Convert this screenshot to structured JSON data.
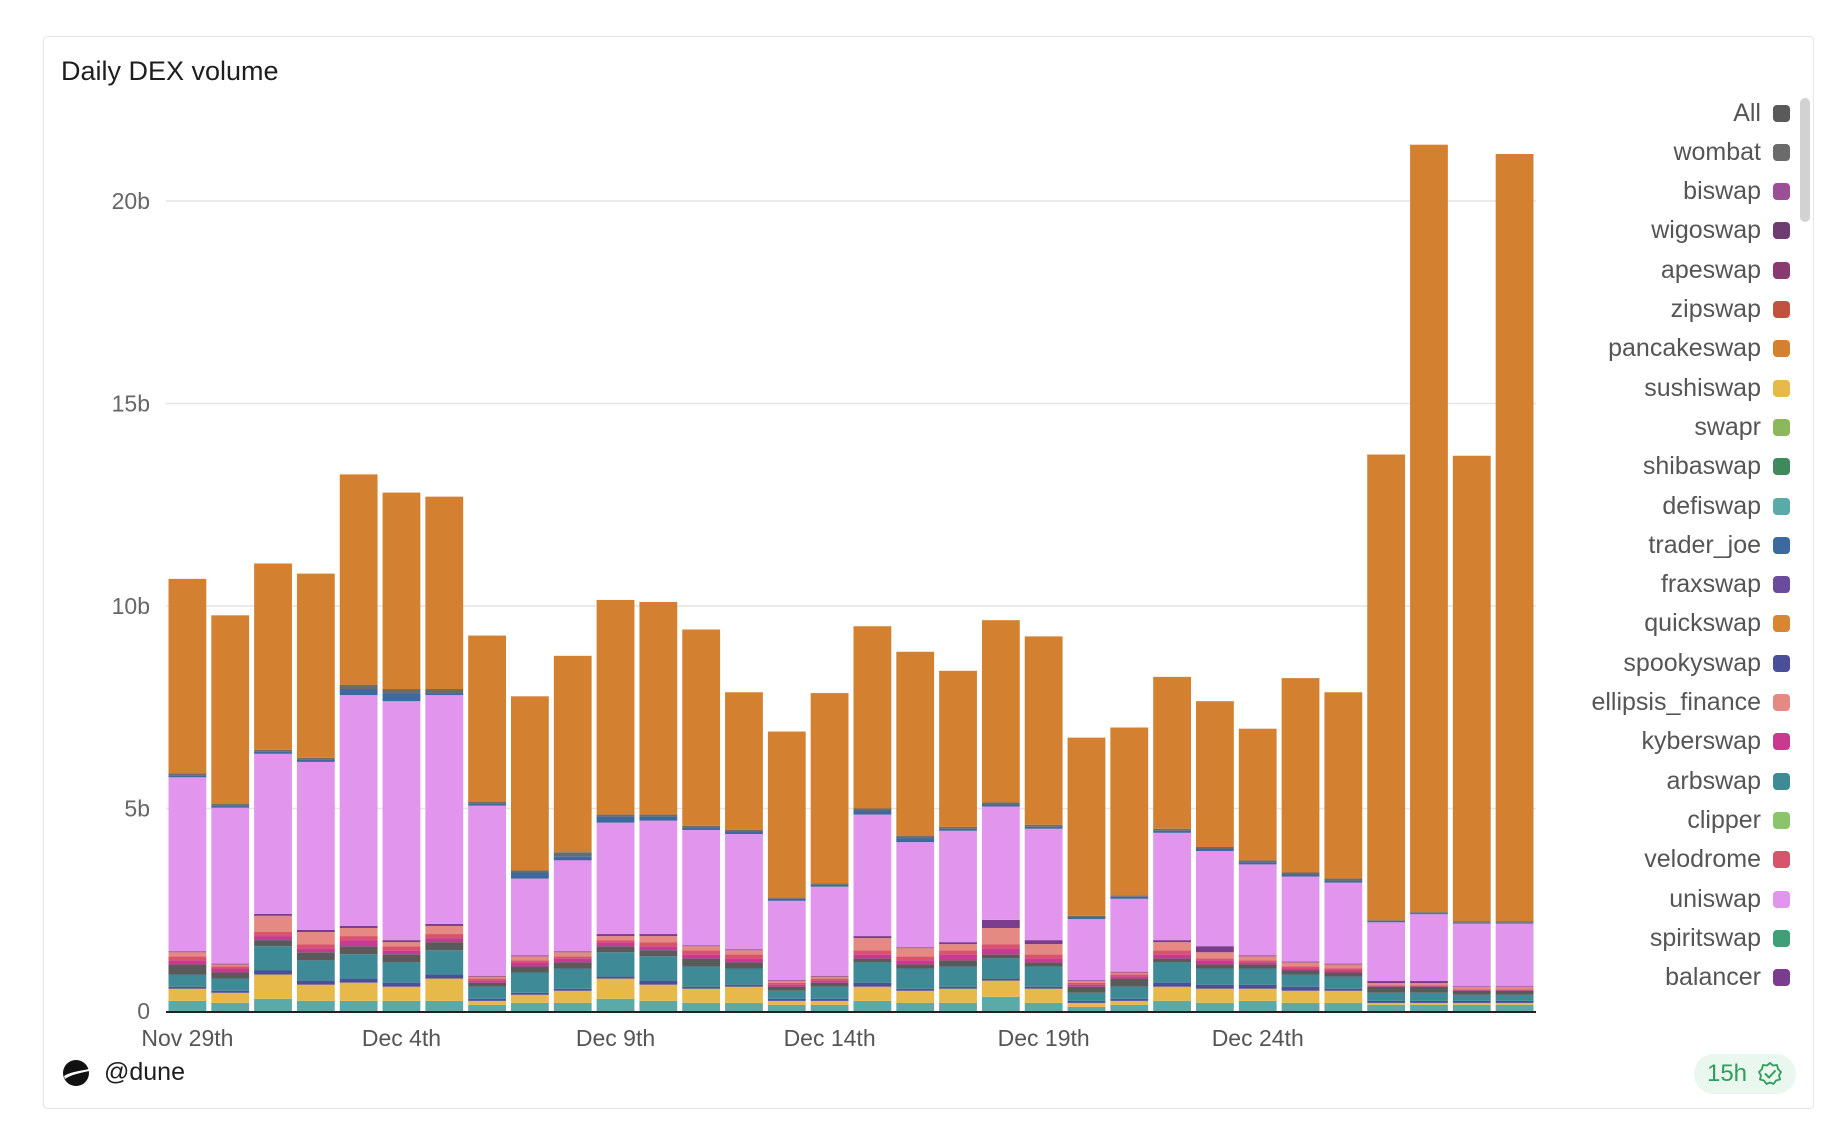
{
  "card": {
    "title": "Daily DEX volume"
  },
  "footer": {
    "user": "@dune",
    "logo_icon": "dune-logo-icon",
    "freshness": "15h",
    "freshness_icon": "verified-check-icon"
  },
  "legend": {
    "items": [
      {
        "label": "All",
        "color": "#5a5a5a"
      },
      {
        "label": "wombat",
        "color": "#6b6b6b"
      },
      {
        "label": "biswap",
        "color": "#9b4f96"
      },
      {
        "label": "wigoswap",
        "color": "#6d3d72"
      },
      {
        "label": "apeswap",
        "color": "#8b3a6f"
      },
      {
        "label": "zipswap",
        "color": "#c0533f"
      },
      {
        "label": "pancakeswap",
        "color": "#d38130"
      },
      {
        "label": "sushiswap",
        "color": "#e7b84a"
      },
      {
        "label": "swapr",
        "color": "#8bb85a"
      },
      {
        "label": "shibaswap",
        "color": "#3f8a5c"
      },
      {
        "label": "defiswap",
        "color": "#5aaaa8"
      },
      {
        "label": "trader_joe",
        "color": "#3d6a9e"
      },
      {
        "label": "fraxswap",
        "color": "#6a4c9c"
      },
      {
        "label": "quickswap",
        "color": "#d8862f"
      },
      {
        "label": "spookyswap",
        "color": "#4a4f9a"
      },
      {
        "label": "ellipsis_finance",
        "color": "#e58a82"
      },
      {
        "label": "kyberswap",
        "color": "#c8398f"
      },
      {
        "label": "arbswap",
        "color": "#3e8a96"
      },
      {
        "label": "clipper",
        "color": "#8cc46a"
      },
      {
        "label": "velodrome",
        "color": "#d9536a"
      },
      {
        "label": "uniswap",
        "color": "#e295ec"
      },
      {
        "label": "spiritswap",
        "color": "#3fa078"
      },
      {
        "label": "balancer",
        "color": "#7a3c8c"
      }
    ]
  },
  "chart_data": {
    "type": "bar",
    "stacked": true,
    "title": "Daily DEX volume",
    "xlabel": "",
    "ylabel": "",
    "ylim": [
      0,
      22
    ],
    "y_unit": "b",
    "y_ticks": [
      0,
      5,
      10,
      15,
      20
    ],
    "y_tick_labels": [
      "0",
      "5b",
      "10b",
      "15b",
      "20b"
    ],
    "x_tick_labels": [
      {
        "index": 0,
        "label": "Nov 29th"
      },
      {
        "index": 5,
        "label": "Dec 4th"
      },
      {
        "index": 10,
        "label": "Dec 9th"
      },
      {
        "index": 15,
        "label": "Dec 14th"
      },
      {
        "index": 20,
        "label": "Dec 19th"
      },
      {
        "index": 25,
        "label": "Dec 24th"
      }
    ],
    "categories": [
      "Nov 29",
      "Nov 30",
      "Dec 1",
      "Dec 2",
      "Dec 3",
      "Dec 4",
      "Dec 5",
      "Dec 6",
      "Dec 7",
      "Dec 8",
      "Dec 9",
      "Dec 10",
      "Dec 11",
      "Dec 12",
      "Dec 13",
      "Dec 14",
      "Dec 15",
      "Dec 16",
      "Dec 17",
      "Dec 18",
      "Dec 19",
      "Dec 20",
      "Dec 21",
      "Dec 22",
      "Dec 23",
      "Dec 24",
      "Dec 25",
      "Dec 26",
      "Dec 27",
      "Dec 28",
      "Dec 29",
      "Dec 30"
    ],
    "series": [
      {
        "name": "defiswap",
        "color": "#5aaaa8",
        "values": [
          0.25,
          0.2,
          0.3,
          0.25,
          0.25,
          0.25,
          0.25,
          0.15,
          0.2,
          0.2,
          0.3,
          0.25,
          0.2,
          0.2,
          0.15,
          0.15,
          0.25,
          0.2,
          0.2,
          0.35,
          0.2,
          0.1,
          0.15,
          0.25,
          0.2,
          0.25,
          0.2,
          0.2,
          0.15,
          0.15,
          0.15,
          0.15
        ]
      },
      {
        "name": "sushiswap",
        "color": "#e7b84a",
        "values": [
          0.3,
          0.25,
          0.6,
          0.4,
          0.45,
          0.35,
          0.55,
          0.1,
          0.2,
          0.3,
          0.5,
          0.4,
          0.35,
          0.4,
          0.1,
          0.1,
          0.35,
          0.3,
          0.35,
          0.4,
          0.35,
          0.1,
          0.1,
          0.35,
          0.35,
          0.3,
          0.3,
          0.3,
          0.05,
          0.05,
          0.05,
          0.05
        ]
      },
      {
        "name": "spookyswap",
        "color": "#4a4f9a",
        "values": [
          0.05,
          0.05,
          0.1,
          0.1,
          0.1,
          0.1,
          0.1,
          0.05,
          0.05,
          0.05,
          0.05,
          0.1,
          0.05,
          0.05,
          0.05,
          0.05,
          0.1,
          0.05,
          0.05,
          0.05,
          0.05,
          0.05,
          0.05,
          0.1,
          0.1,
          0.1,
          0.1,
          0.05,
          0.05,
          0.05,
          0.05,
          0.05
        ]
      },
      {
        "name": "arbswap",
        "color": "#3e8a96",
        "values": [
          0.3,
          0.3,
          0.6,
          0.5,
          0.6,
          0.5,
          0.6,
          0.3,
          0.5,
          0.5,
          0.6,
          0.6,
          0.5,
          0.4,
          0.2,
          0.3,
          0.5,
          0.5,
          0.5,
          0.5,
          0.5,
          0.2,
          0.3,
          0.5,
          0.4,
          0.4,
          0.3,
          0.3,
          0.2,
          0.2,
          0.15,
          0.15
        ]
      },
      {
        "name": "All",
        "color": "#5a5a5a",
        "values": [
          0.25,
          0.15,
          0.15,
          0.2,
          0.2,
          0.2,
          0.2,
          0.1,
          0.15,
          0.15,
          0.15,
          0.15,
          0.2,
          0.15,
          0.1,
          0.1,
          0.1,
          0.1,
          0.15,
          0.1,
          0.1,
          0.15,
          0.2,
          0.1,
          0.1,
          0.1,
          0.1,
          0.1,
          0.15,
          0.15,
          0.1,
          0.1
        ]
      },
      {
        "name": "kyberswap",
        "color": "#c8398f",
        "values": [
          0.1,
          0.1,
          0.1,
          0.1,
          0.15,
          0.1,
          0.1,
          0.05,
          0.1,
          0.1,
          0.1,
          0.1,
          0.1,
          0.1,
          0.05,
          0.05,
          0.1,
          0.1,
          0.15,
          0.15,
          0.1,
          0.05,
          0.05,
          0.1,
          0.1,
          0.05,
          0.05,
          0.05,
          0.02,
          0.02,
          0.02,
          0.02
        ]
      },
      {
        "name": "velodrome",
        "color": "#d9536a",
        "values": [
          0.1,
          0.05,
          0.1,
          0.1,
          0.1,
          0.1,
          0.1,
          0.05,
          0.05,
          0.05,
          0.05,
          0.1,
          0.1,
          0.1,
          0.05,
          0.05,
          0.1,
          0.1,
          0.1,
          0.1,
          0.1,
          0.05,
          0.05,
          0.1,
          0.05,
          0.05,
          0.05,
          0.05,
          0.02,
          0.02,
          0.02,
          0.02
        ]
      },
      {
        "name": "ellipsis_finance",
        "color": "#e58a82",
        "values": [
          0.1,
          0.05,
          0.4,
          0.3,
          0.2,
          0.1,
          0.2,
          0.05,
          0.1,
          0.1,
          0.1,
          0.15,
          0.1,
          0.1,
          0.05,
          0.05,
          0.3,
          0.2,
          0.15,
          0.4,
          0.25,
          0.05,
          0.05,
          0.2,
          0.15,
          0.1,
          0.1,
          0.1,
          0.05,
          0.05,
          0.05,
          0.05
        ]
      },
      {
        "name": "balancer",
        "color": "#7a3c8c",
        "values": [
          0.02,
          0.02,
          0.05,
          0.05,
          0.05,
          0.05,
          0.05,
          0.02,
          0.02,
          0.02,
          0.05,
          0.05,
          0.02,
          0.02,
          0.02,
          0.02,
          0.05,
          0.02,
          0.05,
          0.2,
          0.1,
          0.02,
          0.02,
          0.05,
          0.15,
          0.02,
          0.02,
          0.02,
          0.05,
          0.05,
          0.02,
          0.02
        ]
      },
      {
        "name": "uniswap",
        "color": "#e295ec",
        "values": [
          4.3,
          3.85,
          3.95,
          4.15,
          5.7,
          5.9,
          5.65,
          4.2,
          1.9,
          2.25,
          2.75,
          2.8,
          2.85,
          2.85,
          1.95,
          2.2,
          3.0,
          2.6,
          2.75,
          2.8,
          2.75,
          1.5,
          1.8,
          2.65,
          2.35,
          2.25,
          2.1,
          2.0,
          1.45,
          1.65,
          1.55,
          1.55
        ]
      },
      {
        "name": "trader_joe",
        "color": "#3d6a9e",
        "values": [
          0.05,
          0.05,
          0.05,
          0.05,
          0.15,
          0.2,
          0.05,
          0.05,
          0.15,
          0.1,
          0.15,
          0.1,
          0.05,
          0.05,
          0.05,
          0.05,
          0.1,
          0.1,
          0.05,
          0.05,
          0.05,
          0.05,
          0.05,
          0.05,
          0.05,
          0.05,
          0.05,
          0.05,
          0.02,
          0.02,
          0.02,
          0.02
        ]
      },
      {
        "name": "wombat",
        "color": "#6b6b6b",
        "values": [
          0.05,
          0.05,
          0.05,
          0.05,
          0.1,
          0.1,
          0.1,
          0.05,
          0.05,
          0.1,
          0.05,
          0.05,
          0.05,
          0.05,
          0.03,
          0.03,
          0.05,
          0.05,
          0.05,
          0.05,
          0.05,
          0.03,
          0.03,
          0.05,
          0.05,
          0.05,
          0.05,
          0.05,
          0.03,
          0.03,
          0.03,
          0.03
        ]
      },
      {
        "name": "pancakeswap",
        "color": "#d38130",
        "values": [
          4.8,
          4.65,
          4.6,
          4.55,
          5.2,
          4.85,
          4.75,
          4.1,
          4.3,
          4.85,
          5.3,
          5.25,
          4.85,
          3.4,
          4.1,
          4.7,
          4.5,
          4.55,
          3.85,
          4.5,
          4.65,
          4.4,
          4.15,
          3.75,
          3.6,
          3.25,
          4.8,
          4.6,
          11.5,
          18.95,
          11.5,
          18.95
        ]
      }
    ]
  }
}
